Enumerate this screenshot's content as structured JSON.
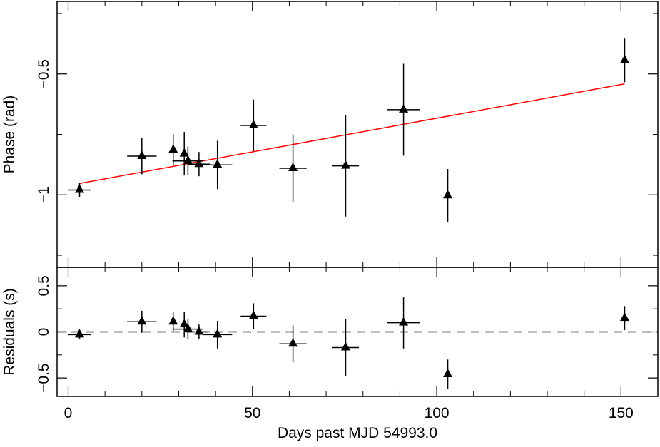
{
  "chart_data": [
    {
      "type": "scatter",
      "y_label": "Phase (rad)",
      "xlim": [
        -3,
        160
      ],
      "ylim": [
        -1.3,
        -0.2
      ],
      "yticks": [
        {
          "value": -0.5,
          "label": "−0.5"
        },
        {
          "value": -1,
          "label": "−1"
        }
      ],
      "yminor": [
        -0.25,
        -0.75,
        -1.25
      ],
      "series": [
        {
          "color": "#000000",
          "x": [
            3.1,
            20,
            28.5,
            31.5,
            32.5,
            35.5,
            40.5,
            50.3,
            61,
            75.3,
            91,
            103,
            151
          ],
          "values": [
            -0.98,
            -0.84,
            -0.814,
            -0.83,
            -0.86,
            -0.873,
            -0.876,
            -0.713,
            -0.89,
            -0.88,
            -0.648,
            -1.003,
            -0.444
          ],
          "yerr": [
            0.03,
            0.075,
            0.065,
            0.09,
            0.06,
            0.05,
            0.1,
            0.107,
            0.14,
            0.21,
            0.19,
            0.11,
            0.09
          ],
          "xerr": [
            3,
            4,
            0,
            0,
            4.2,
            3,
            4,
            3.5,
            3.7,
            3.6,
            4.5,
            0,
            0
          ]
        }
      ],
      "fit": {
        "color": "#ff0000",
        "x": [
          3.1,
          151
        ],
        "values": [
          -0.953,
          -0.541
        ]
      }
    },
    {
      "type": "scatter",
      "y_label": "Residuals (s)",
      "x_label": "Days past MJD 54993.0",
      "xlim": [
        -3,
        160
      ],
      "ylim": [
        -0.7,
        0.7
      ],
      "xticks": [
        0,
        50,
        100,
        150
      ],
      "xminor": [
        10,
        20,
        30,
        40,
        60,
        70,
        80,
        90,
        110,
        120,
        130,
        140
      ],
      "yticks": [
        0.5,
        0,
        {
          "value": -0.5,
          "label": "−0.5"
        }
      ],
      "yminor": [
        0.25,
        -0.25
      ],
      "hline": 0,
      "series": [
        {
          "color": "#000000",
          "x": [
            3.1,
            20,
            28.5,
            31.5,
            32.5,
            35.5,
            40.5,
            50.3,
            61,
            75.3,
            91,
            103,
            151
          ],
          "values": [
            -0.03,
            0.11,
            0.11,
            0.08,
            0.03,
            0.0,
            -0.03,
            0.17,
            -0.13,
            -0.17,
            0.1,
            -0.46,
            0.15
          ],
          "yerr": [
            0.05,
            0.12,
            0.1,
            0.14,
            0.11,
            0.08,
            0.15,
            0.14,
            0.2,
            0.31,
            0.28,
            0.16,
            0.13
          ],
          "xerr": [
            3,
            4,
            0,
            0,
            4.2,
            3,
            4,
            3.5,
            3.7,
            3.6,
            4.5,
            0,
            0
          ]
        }
      ]
    }
  ]
}
